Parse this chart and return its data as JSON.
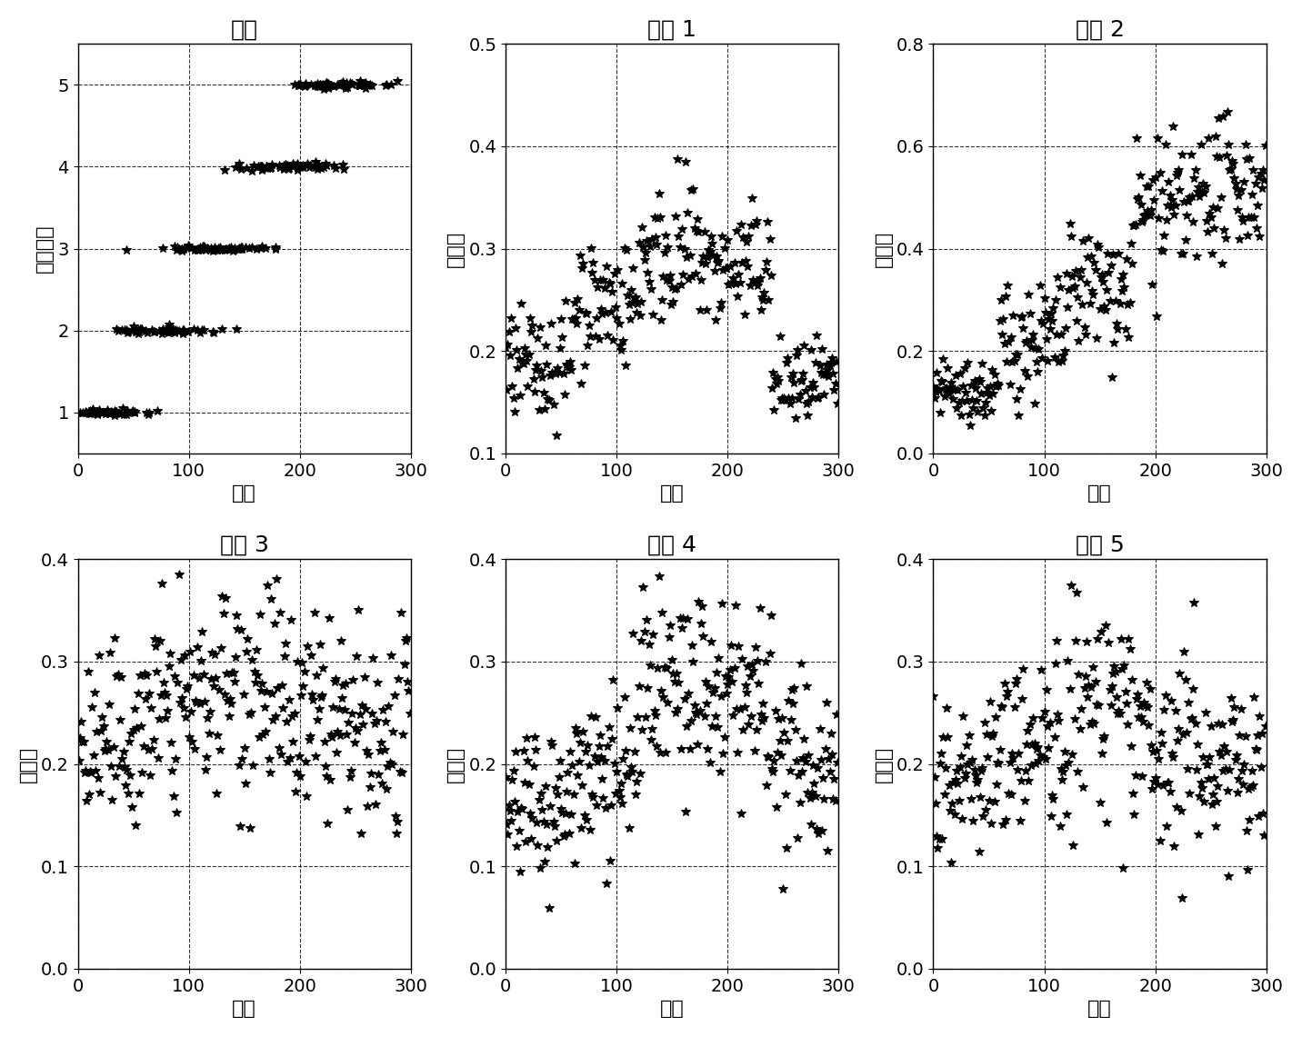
{
  "subplot_titles": [
    "种类",
    "属性 1",
    "属性 2",
    "属性 3",
    "属性 4",
    "属性 5"
  ],
  "xlabel": "样本",
  "ylabel_class": "类别标签",
  "ylabel_attr": "属性値",
  "xlim": [
    0,
    300
  ],
  "ylim_class": [
    0.5,
    5.5
  ],
  "ylim_attr1": [
    0.1,
    0.5
  ],
  "ylim_attr2": [
    0.0,
    0.8
  ],
  "ylim_attr345": [
    0.0,
    0.4
  ],
  "yticks_class": [
    1,
    2,
    3,
    4,
    5
  ],
  "yticks_attr1": [
    0.1,
    0.2,
    0.3,
    0.4,
    0.5
  ],
  "yticks_attr2": [
    0.0,
    0.2,
    0.4,
    0.6,
    0.8
  ],
  "yticks_attr345": [
    0.0,
    0.1,
    0.2,
    0.3,
    0.4
  ],
  "xticks": [
    0,
    100,
    200,
    300
  ],
  "n_per_class": 60,
  "n_classes": 5,
  "seed": 42,
  "figsize": [
    14.32,
    11.41
  ],
  "dpi": 100,
  "marker": "*",
  "markersize": 7,
  "color": "black",
  "background_color": "white",
  "title_fontsize": 18,
  "label_fontsize": 16,
  "tick_fontsize": 14,
  "class_centers_x": [
    25,
    75,
    125,
    185,
    240
  ],
  "class_centers_y": [
    1,
    2,
    3,
    4,
    5
  ],
  "class_spread_x": 25,
  "class_spread_y": 0.02
}
